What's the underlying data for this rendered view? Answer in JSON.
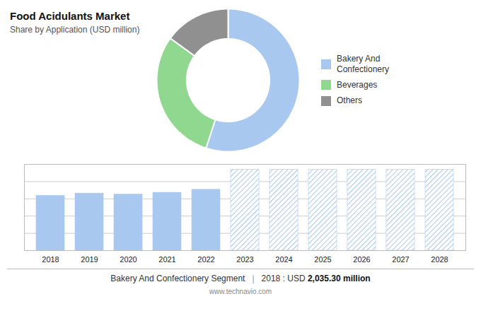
{
  "chart_data": [
    {
      "type": "pie",
      "title": "Food Acidulants Market",
      "subtitle": "Share by Application (USD million)",
      "categories": [
        "Bakery And\nConfectionery",
        "Beverages",
        "Others"
      ],
      "values": [
        55,
        30,
        15
      ],
      "colors": [
        "#a8c8f0",
        "#90d890",
        "#909090"
      ],
      "legend": "right"
    },
    {
      "type": "bar",
      "categories": [
        "2018",
        "2019",
        "2020",
        "2021",
        "2022",
        "2023",
        "2024",
        "2025",
        "2026",
        "2027",
        "2028"
      ],
      "series": [
        {
          "color": "#a8c8f0",
          "values": [
            2035.3,
            2120,
            2080,
            2150,
            2260,
            null,
            null,
            null,
            null,
            null,
            null
          ]
        },
        {
          "color": "#a8c8f0",
          "values": [
            null,
            null,
            null,
            null,
            null,
            3000,
            3000,
            3000,
            3000,
            3000,
            3000
          ]
        }
      ],
      "ylim": [
        0,
        3200
      ],
      "yticks": [
        640,
        1280,
        1920,
        2560
      ],
      "grid": true,
      "tick_labels": "x",
      "annotations": [
        "Bakery And Confectionery Segment",
        "|",
        "2018 : USD ",
        "2,035.30 million",
        "www.technavio.com"
      ]
    }
  ]
}
